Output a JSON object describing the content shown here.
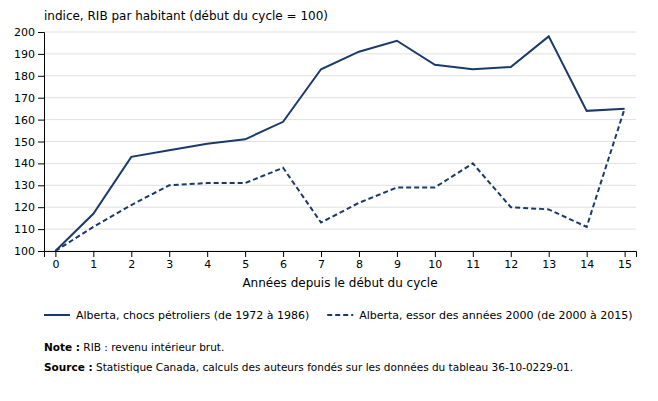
{
  "chart_data": {
    "type": "line",
    "title": "indice, RIB par habitant (début du cycle = 100)",
    "x_label": "Années depuis le début du cycle",
    "x": [
      0,
      1,
      2,
      3,
      4,
      5,
      6,
      7,
      8,
      9,
      10,
      11,
      12,
      13,
      14,
      15
    ],
    "series": [
      {
        "name": "Alberta, chocs pétroliers (de 1972 à 1986)",
        "color": "#1a3a6b",
        "line_style": "solid",
        "values": [
          100,
          117,
          143,
          146,
          149,
          151,
          159,
          183,
          191,
          196,
          185,
          183,
          184,
          198,
          164,
          165
        ]
      },
      {
        "name": "Alberta, essor des années 2000 (de 2000 à 2015)",
        "color": "#1a3a6b",
        "line_style": "dashed",
        "values": [
          100,
          111,
          121,
          130,
          131,
          131,
          138,
          113,
          122,
          129,
          129,
          140,
          120,
          119,
          111,
          165
        ]
      }
    ],
    "xlim": [
      -0.3,
      15.3
    ],
    "ylim": [
      100,
      200
    ],
    "xticks": [
      0,
      1,
      2,
      3,
      4,
      5,
      6,
      7,
      8,
      9,
      10,
      11,
      12,
      13,
      14,
      15
    ],
    "yticks": [
      100,
      110,
      120,
      130,
      140,
      150,
      160,
      170,
      180,
      190,
      200
    ],
    "grid": true,
    "legend": "bottom",
    "annotations": [
      [
        "Note :",
        " RIB : revenu intérieur brut."
      ],
      [
        "Source :",
        " Statistique Canada, calculs des auteurs fondés sur les données du tableau 36-10-0229-01."
      ]
    ]
  }
}
